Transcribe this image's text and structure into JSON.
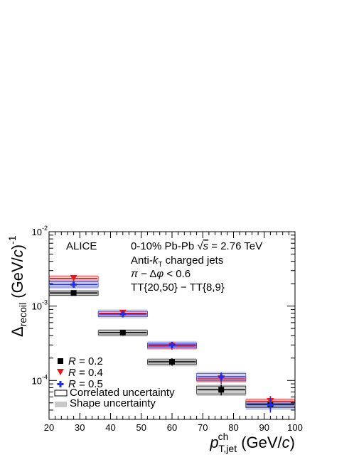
{
  "chart_data": {
    "type": "scatter",
    "experiment": "ALICE",
    "annotations": {
      "line1_a": "0-10% Pb-Pb ",
      "line1_sqrt": "√",
      "line1_s": "s",
      "line1_b": " = 2.76 TeV",
      "line2_a": "Anti-",
      "line2_k": "k",
      "line2_sub": "T",
      "line2_b": " charged jets",
      "line3_pi": "π",
      "line3_b": " − Δ",
      "line3_phi": "φ",
      "line3_c": " < 0.6",
      "line4": "TT{20,50} − TT{8,9}"
    },
    "xlabel": {
      "p": "p",
      "sup": "ch",
      "sub": "T,jet",
      "unit_a": " (GeV/",
      "unit_c": "c",
      "unit_b": ")"
    },
    "ylabel": {
      "delta": "Δ",
      "sub": "recoil",
      "unit_a": " (GeV/",
      "unit_c": "c",
      "unit_b": ")",
      "sup": "-1"
    },
    "xlim": [
      20,
      100
    ],
    "ylim": [
      3e-05,
      0.01
    ],
    "yscale": "log",
    "x_ticks": [
      "20",
      "30",
      "40",
      "50",
      "60",
      "70",
      "80",
      "90",
      "100"
    ],
    "y_ticks": [
      {
        "value": 0.01,
        "base": "10",
        "exp": "-2"
      },
      {
        "value": 0.001,
        "base": "10",
        "exp": "-3"
      },
      {
        "value": 0.0001,
        "base": "10",
        "exp": "-4"
      }
    ],
    "legend_position": "bottom-left",
    "series": [
      {
        "key": "r02",
        "legend_a": "R",
        "legend_b": " = 0.2",
        "color": "#000000",
        "marker": "square",
        "shape_color": "#bdbdbd",
        "points": [
          {
            "x": 28,
            "xlo": 20,
            "xhi": 36,
            "y": 0.0015,
            "stat": [
              0.00145,
              0.00155
            ],
            "corr": [
              0.0014,
              0.0016
            ],
            "shape": [
              0.00136,
              0.00164
            ]
          },
          {
            "x": 44,
            "xlo": 36,
            "xhi": 52,
            "y": 0.00044,
            "stat": [
              0.0004,
              0.00048
            ],
            "corr": [
              0.00041,
              0.00047
            ],
            "shape": [
              0.00039,
              0.00049
            ]
          },
          {
            "x": 60,
            "xlo": 52,
            "xhi": 68,
            "y": 0.000178,
            "stat": [
              0.000158,
              0.000198
            ],
            "corr": [
              0.000166,
              0.00019
            ],
            "shape": [
              0.000155,
              0.0002
            ]
          },
          {
            "x": 76,
            "xlo": 68,
            "xhi": 84,
            "y": 7.5e-05,
            "stat": [
              6.3e-05,
              8.8e-05
            ],
            "corr": [
              6.6e-05,
              8.4e-05
            ],
            "shape": [
              6.2e-05,
              8.8e-05
            ]
          },
          {
            "x": 92,
            "xlo": 84,
            "xhi": 100,
            "y": 4.8e-05,
            "stat": [
              4.1e-05,
              5.7e-05
            ],
            "corr": [
              4.4e-05,
              5.2e-05
            ],
            "shape": [
              4.1e-05,
              5.5e-05
            ]
          }
        ]
      },
      {
        "key": "r04",
        "legend_a": "R",
        "legend_b": " = 0.4",
        "color": "#e41a1c",
        "marker": "triangle-down",
        "shape_color": "#f4c0c0",
        "points": [
          {
            "x": 28,
            "xlo": 20,
            "xhi": 36,
            "y": 0.00235,
            "stat": [
              0.00225,
              0.00245
            ],
            "corr": [
              0.00218,
              0.00252
            ],
            "shape": [
              0.0021,
              0.00262
            ]
          },
          {
            "x": 44,
            "xlo": 36,
            "xhi": 52,
            "y": 0.0008,
            "stat": [
              0.00076,
              0.00084
            ],
            "corr": [
              0.00075,
              0.00085
            ],
            "shape": [
              0.00072,
              0.00088
            ]
          },
          {
            "x": 60,
            "xlo": 52,
            "xhi": 68,
            "y": 0.00029,
            "stat": [
              0.00026,
              0.00032
            ],
            "corr": [
              0.00027,
              0.00031
            ],
            "shape": [
              0.00026,
              0.00032
            ]
          },
          {
            "x": 76,
            "xlo": 68,
            "xhi": 84,
            "y": 0.000105,
            "stat": [
              9e-05,
              0.000122
            ],
            "corr": [
              9.8e-05,
              0.000112
            ],
            "shape": [
              9.3e-05,
              0.000118
            ]
          },
          {
            "x": 92,
            "xlo": 84,
            "xhi": 100,
            "y": 5.2e-05,
            "stat": [
              4.4e-05,
              6.2e-05
            ],
            "corr": [
              4.9e-05,
              5.5e-05
            ],
            "shape": [
              4.6e-05,
              5.8e-05
            ]
          }
        ]
      },
      {
        "key": "r05",
        "legend_a": "R",
        "legend_b": " = 0.5",
        "color": "#1f2ee6",
        "marker": "cross",
        "shape_color": "#c4c9f0",
        "points": [
          {
            "x": 28,
            "xlo": 20,
            "xhi": 36,
            "y": 0.00195,
            "stat": [
              0.00185,
              0.00205
            ],
            "corr": [
              0.0018,
              0.00212
            ],
            "shape": [
              0.0017,
              0.00225
            ]
          },
          {
            "x": 44,
            "xlo": 36,
            "xhi": 52,
            "y": 0.00078,
            "stat": [
              0.00073,
              0.00083
            ],
            "corr": [
              0.00072,
              0.00085
            ],
            "shape": [
              0.00068,
              0.0009
            ]
          },
          {
            "x": 60,
            "xlo": 52,
            "xhi": 68,
            "y": 0.0003,
            "stat": [
              0.00027,
              0.00033
            ],
            "corr": [
              0.00028,
              0.00032
            ],
            "shape": [
              0.00026,
              0.00034
            ]
          },
          {
            "x": 76,
            "xlo": 68,
            "xhi": 84,
            "y": 0.000112,
            "stat": [
              9.6e-05,
              0.000128
            ],
            "corr": [
              0.0001,
              0.000124
            ],
            "shape": [
              9.3e-05,
              0.000132
            ]
          },
          {
            "x": 92,
            "xlo": 84,
            "xhi": 100,
            "y": 4.7e-05,
            "stat": [
              3.7e-05,
              5.9e-05
            ],
            "corr": [
              4.3e-05,
              5.1e-05
            ],
            "shape": [
              4e-05,
              5.4e-05
            ]
          }
        ]
      }
    ],
    "legend_boxes": [
      {
        "key": "corr",
        "label": "Correlated uncertainty",
        "style": "outline"
      },
      {
        "key": "shape",
        "label": "Shape uncertainty",
        "style": "filled",
        "color": "#c8c8c8"
      }
    ]
  }
}
